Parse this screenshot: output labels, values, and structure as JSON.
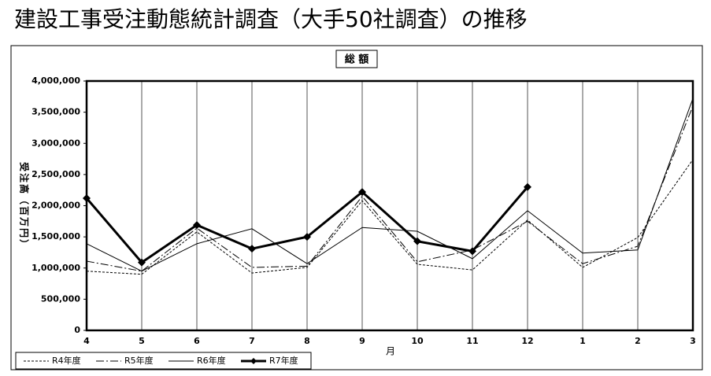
{
  "title": "建設工事受注動態統計調査（大手50社調査）の推移",
  "chart_data": {
    "type": "line",
    "title": "総 額",
    "y_label": "受注高（百万円）",
    "x_label": "月",
    "categories": [
      "4",
      "5",
      "6",
      "7",
      "8",
      "9",
      "10",
      "11",
      "12",
      "1",
      "2",
      "3"
    ],
    "ylim": [
      0,
      4000000
    ],
    "yticks": [
      0,
      {
        "value": 500000,
        "label": "500,000"
      },
      {
        "value": 1000000,
        "label": "1,000,000"
      },
      {
        "value": 1500000,
        "label": "1,500,000"
      },
      {
        "value": 2000000,
        "label": "2,000,000"
      },
      {
        "value": 2500000,
        "label": "2,500,000"
      },
      {
        "value": 3000000,
        "label": "3,000,000"
      },
      {
        "value": 3500000,
        "label": "3,500,000"
      },
      {
        "value": 4000000,
        "label": "4,000,000"
      }
    ],
    "series": [
      {
        "name": "R4年度",
        "color": "#000000",
        "dash": "3,2",
        "width": 1,
        "values": [
          950000,
          900000,
          1580000,
          920000,
          1010000,
          2080000,
          1060000,
          970000,
          1770000,
          1010000,
          1490000,
          2740000
        ]
      },
      {
        "name": "R5年度",
        "color": "#000000",
        "dash": "10,3,2,3",
        "width": 1,
        "values": [
          1110000,
          950000,
          1640000,
          1010000,
          1030000,
          2150000,
          1100000,
          1290000,
          1750000,
          1070000,
          1350000,
          3600000
        ]
      },
      {
        "name": "R6年度",
        "color": "#000000",
        "dash": "none",
        "width": 1,
        "values": [
          1390000,
          950000,
          1390000,
          1630000,
          1070000,
          1650000,
          1590000,
          1150000,
          1920000,
          1240000,
          1290000,
          3720000
        ]
      },
      {
        "name": "R7年度",
        "color": "#000000",
        "dash": "none",
        "width": 3,
        "marker": "diamond",
        "values": [
          2120000,
          1090000,
          1690000,
          1310000,
          1500000,
          2220000,
          1430000,
          1270000,
          2300000,
          null,
          null,
          null
        ]
      }
    ]
  }
}
